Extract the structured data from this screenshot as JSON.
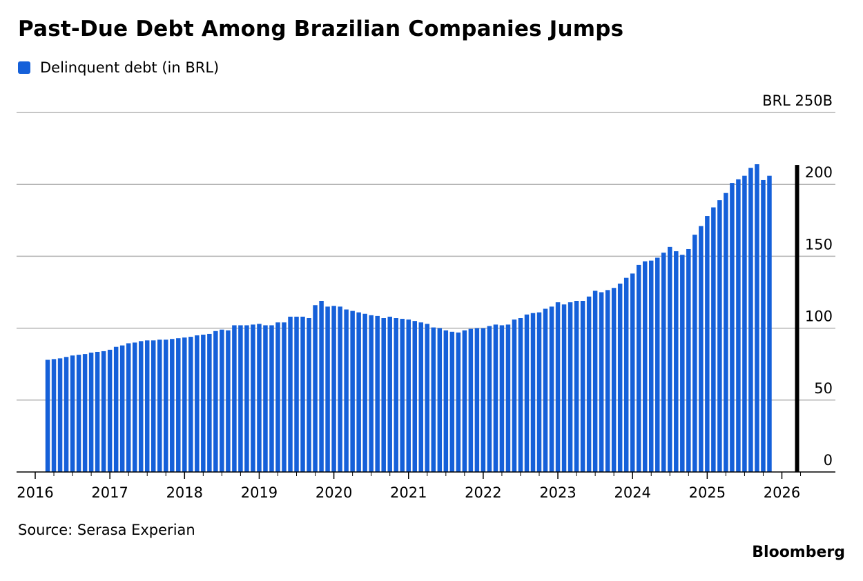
{
  "header": {
    "title": "Past-Due Debt Among Brazilian Companies Jumps"
  },
  "legend": {
    "label": "Delinquent debt (in BRL)",
    "color": "#1560d9"
  },
  "footer": {
    "source": "Source: Serasa Experian",
    "logo": "Bloomberg"
  },
  "chart_data": {
    "type": "bar",
    "title": "Past-Due Debt Among Brazilian Companies Jumps",
    "xlabel": "",
    "ylabel": "",
    "ylim": [
      0,
      250
    ],
    "y_ticks": [
      {
        "value": 250,
        "label": "BRL 250B"
      },
      {
        "value": 200,
        "label": "200"
      },
      {
        "value": 150,
        "label": "150"
      },
      {
        "value": 100,
        "label": "100"
      },
      {
        "value": 50,
        "label": "50"
      },
      {
        "value": 0,
        "label": "0"
      }
    ],
    "x_ticks": [
      "2016",
      "2017",
      "2018",
      "2019",
      "2020",
      "2021",
      "2022",
      "2023",
      "2024",
      "2025",
      "2026"
    ],
    "grid": true,
    "legend_position": "top-left",
    "first_month": "2016-03",
    "series": [
      {
        "name": "Delinquent debt (in BRL)",
        "values": [
          78,
          78.5,
          79,
          80,
          81,
          81.5,
          82,
          83,
          83.5,
          84,
          85,
          87,
          88,
          89.5,
          90,
          91,
          91.5,
          91.5,
          92,
          92,
          92.5,
          93,
          93.5,
          94,
          95,
          95.5,
          96,
          98,
          99,
          98.5,
          102,
          102,
          102,
          102.5,
          103,
          102,
          102,
          104,
          104,
          108,
          108,
          108,
          107,
          116,
          119,
          115,
          115.5,
          115,
          113,
          112,
          111,
          110,
          109,
          108.5,
          107,
          108,
          107,
          106.5,
          106,
          105,
          104,
          103,
          100.5,
          100,
          98.5,
          97.5,
          97,
          98.5,
          99.5,
          100,
          100,
          101.5,
          102.5,
          102,
          102.5,
          106,
          107,
          109.5,
          110.5,
          111,
          113.5,
          115,
          118,
          116.5,
          118,
          119,
          119,
          122,
          126,
          125,
          126.5,
          128,
          131,
          135,
          138,
          144,
          146.5,
          147,
          149,
          152.5,
          156.5,
          153.5,
          151,
          155,
          165,
          171,
          178,
          184,
          189,
          194,
          201,
          203.5,
          206,
          211.5,
          214,
          203,
          206
        ]
      }
    ],
    "marker_month": "2026-03"
  }
}
